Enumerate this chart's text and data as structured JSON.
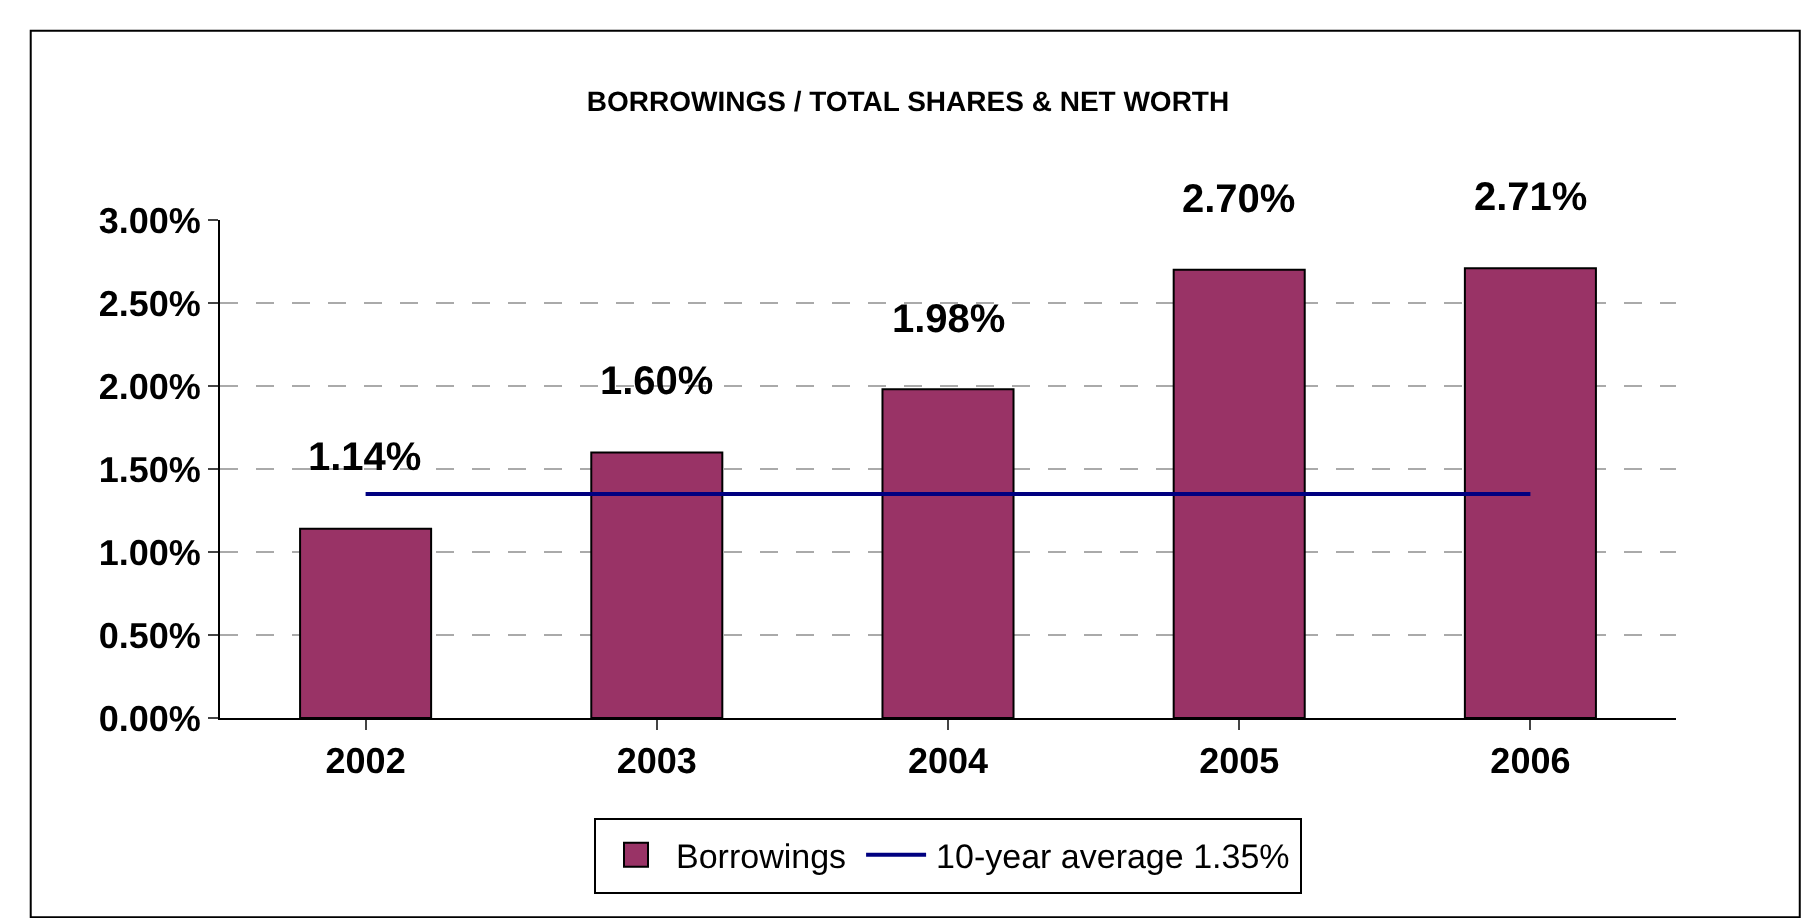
{
  "chart_data": {
    "type": "bar",
    "title": "BORROWINGS / TOTAL SHARES & NET WORTH",
    "categories": [
      "2002",
      "2003",
      "2004",
      "2005",
      "2006"
    ],
    "series": [
      {
        "name": "Borrowings",
        "color": "#993366",
        "values": [
          1.14,
          1.6,
          1.98,
          2.7,
          2.71
        ],
        "value_labels": [
          "1.14%",
          "1.60%",
          "1.98%",
          "2.70%",
          "2.71%"
        ]
      },
      {
        "name": "10-year average 1.35%",
        "type": "line",
        "color": "#000080",
        "values": [
          1.35,
          1.35,
          1.35,
          1.35,
          1.35
        ],
        "marker": "none",
        "line_style": "solid"
      }
    ],
    "ylim": [
      0,
      3.0
    ],
    "yticks": [
      {
        "value": 0,
        "label": "0.00%"
      },
      {
        "value": 0.5,
        "label": "0.50%"
      },
      {
        "value": 1.0,
        "label": "1.00%"
      },
      {
        "value": 1.5,
        "label": "1.50%"
      },
      {
        "value": 2.0,
        "label": "2.00%"
      },
      {
        "value": 2.5,
        "label": "2.50%"
      },
      {
        "value": 3.0,
        "label": "3.00%"
      }
    ],
    "grid": "y",
    "legend": "bottom"
  }
}
